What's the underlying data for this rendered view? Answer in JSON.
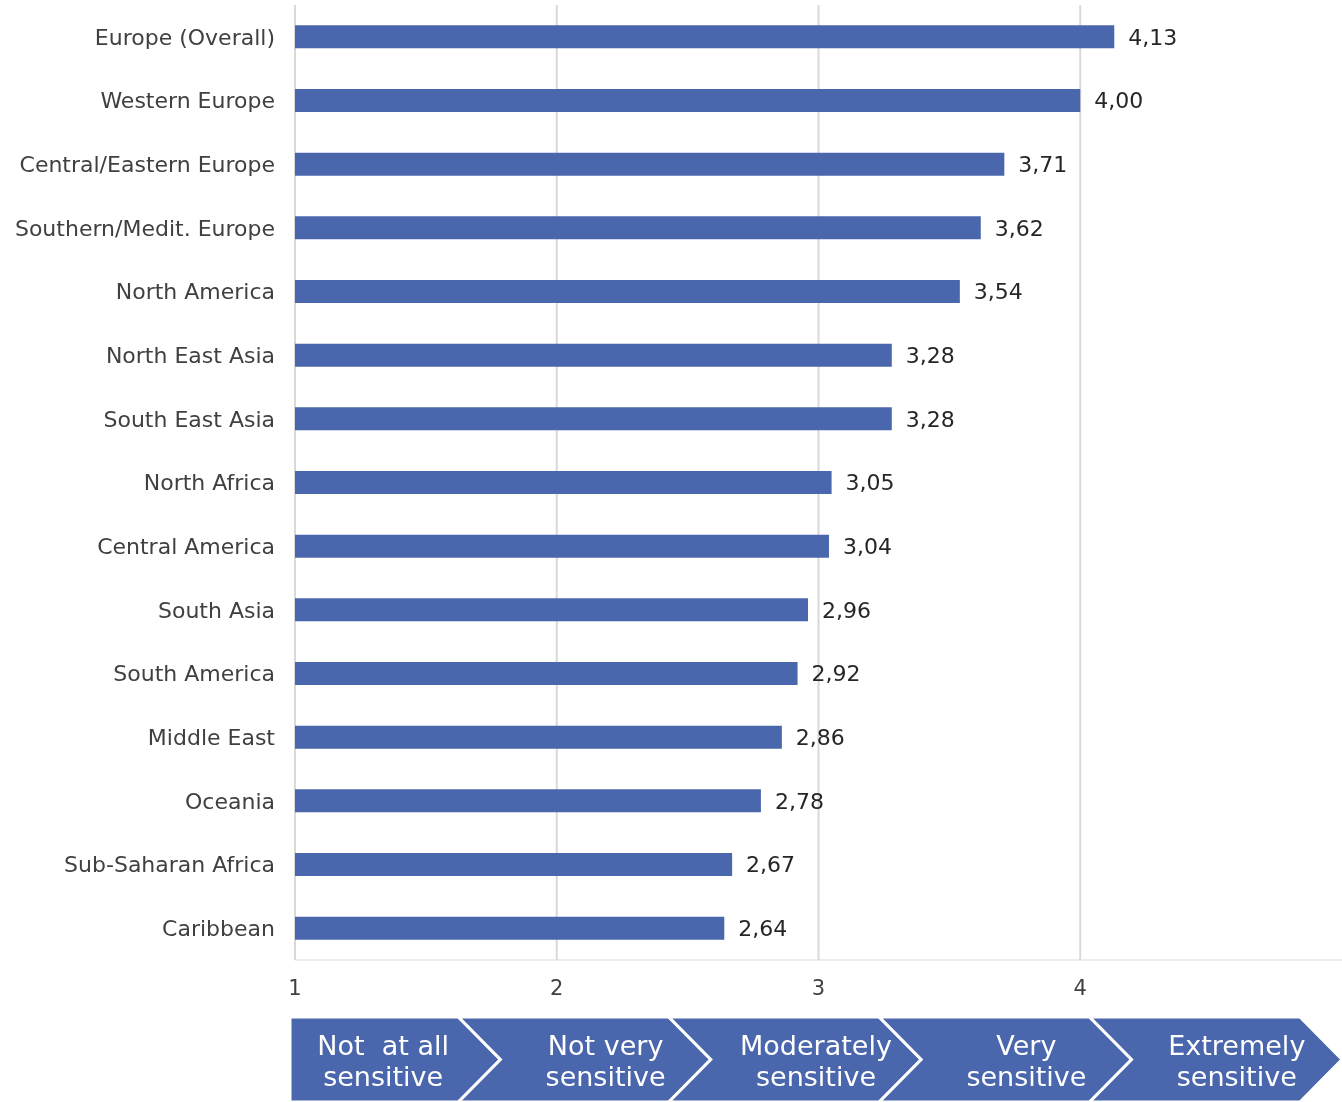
{
  "chart_data": {
    "type": "bar",
    "orientation": "horizontal",
    "categories": [
      "Europe (Overall)",
      "Western Europe",
      "Central/Eastern Europe",
      "Southern/Medit. Europe",
      "North America",
      "North East Asia",
      "South East Asia",
      "North Africa",
      "Central America",
      "South Asia",
      "South America",
      "Middle East",
      "Oceania",
      "Sub-Saharan Africa",
      "Caribbean"
    ],
    "values": [
      4.13,
      4.0,
      3.71,
      3.62,
      3.54,
      3.28,
      3.28,
      3.05,
      3.04,
      2.96,
      2.92,
      2.86,
      2.78,
      2.67,
      2.64
    ],
    "value_labels": [
      "4,13",
      "4,00",
      "3,71",
      "3,62",
      "3,54",
      "3,28",
      "3,28",
      "3,05",
      "3,04",
      "2,96",
      "2,92",
      "2,86",
      "2,78",
      "2,67",
      "2,64"
    ],
    "color": "#4a66ac",
    "xlim": [
      1,
      5
    ],
    "xticks": [
      1,
      2,
      3,
      4
    ],
    "grid": "x",
    "annotations": [
      "Not  at all sensitive",
      "Not very sensitive",
      "Moderately sensitive",
      "Very sensitive",
      "Extremely sensitive"
    ]
  }
}
